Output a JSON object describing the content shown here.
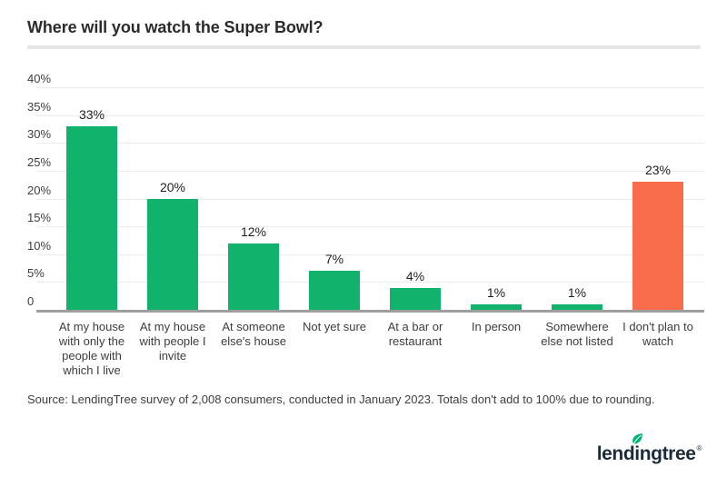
{
  "chart_data": {
    "type": "bar",
    "title": "Where will you watch the Super Bowl?",
    "categories": [
      "At my house with only the people with which I live",
      "At my house with people I invite",
      "At someone else's house",
      "Not yet sure",
      "At a bar or restaurant",
      "In person",
      "Somewhere else not listed",
      "I don't plan to watch"
    ],
    "values": [
      33,
      20,
      12,
      7,
      4,
      1,
      1,
      23
    ],
    "value_labels": [
      "33%",
      "20%",
      "12%",
      "7%",
      "4%",
      "1%",
      "1%",
      "23%"
    ],
    "bar_colors": [
      "#11b26c",
      "#11b26c",
      "#11b26c",
      "#11b26c",
      "#11b26c",
      "#11b26c",
      "#11b26c",
      "#fa6d4c"
    ],
    "xlabel": "",
    "ylabel": "",
    "ylim": [
      0,
      40
    ],
    "yticks": [
      {
        "value": 40,
        "label": "40%"
      },
      {
        "value": 35,
        "label": "35%"
      },
      {
        "value": 30,
        "label": "30%"
      },
      {
        "value": 25,
        "label": "25%"
      },
      {
        "value": 20,
        "label": "20%"
      },
      {
        "value": 15,
        "label": "15%"
      },
      {
        "value": 10,
        "label": "10%"
      },
      {
        "value": 5,
        "label": "5%"
      },
      {
        "value": 0,
        "label": "0"
      }
    ],
    "grid": true,
    "legend": false
  },
  "source_note": "Source: LendingTree survey of 2,008 consumers, conducted in January 2023. Totals don't add to 100% due to rounding.",
  "logo": {
    "left": "lend",
    "mid": "i",
    "right": "ngtree",
    "registered": "®"
  },
  "colors": {
    "bar_green": "#11b26c",
    "bar_orange": "#fa6d4c",
    "gridline": "#ebebeb",
    "axis_line": "#9e9e9e",
    "title": "#2b2b2b",
    "divider": "#e5e5e5",
    "leaf": "#00b274",
    "logo_text": "#1c2b3a"
  }
}
